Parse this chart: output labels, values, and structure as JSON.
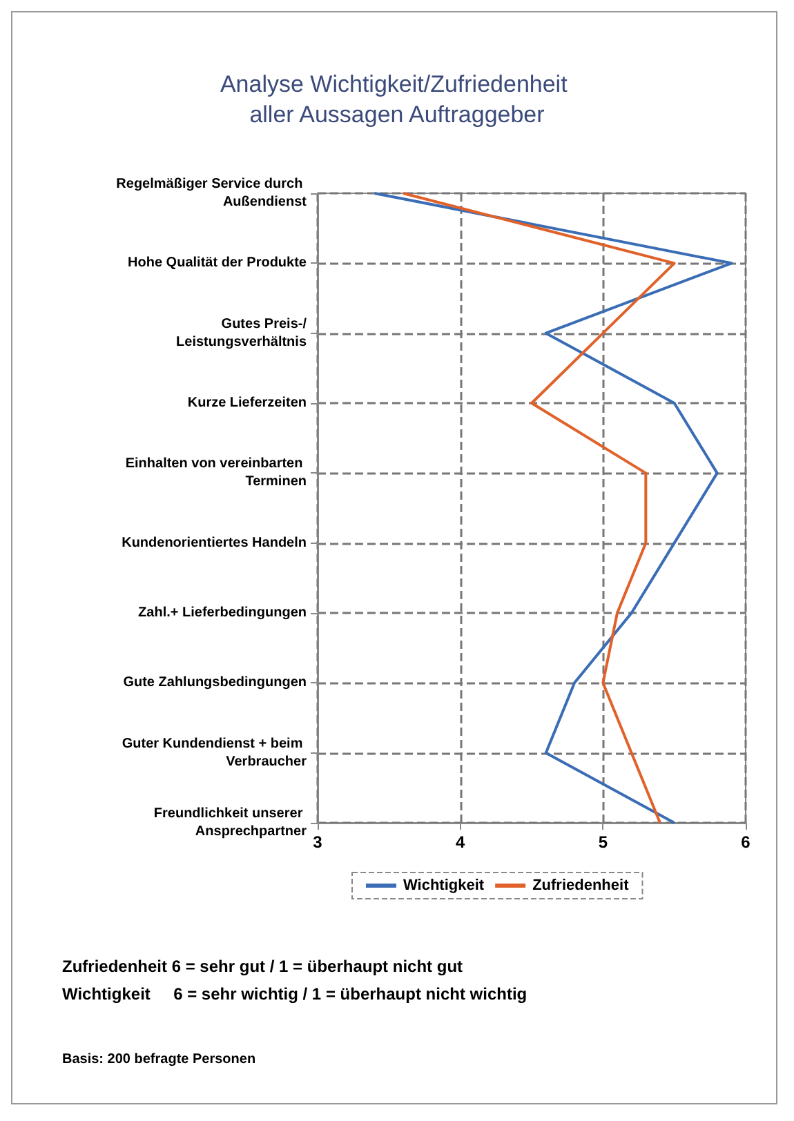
{
  "chart_data": {
    "type": "line",
    "title": "Analyse Wichtigkeit/Zufriedenheit aller Aussagen Auftraggeber",
    "orientation": "horizontal",
    "categories": [
      "Regelmäßiger Service durch Außendienst",
      "Hohe Qualität der Produkte",
      "Gutes Preis-/Leistungsverhältnis",
      "Kurze Lieferzeiten",
      "Einhalten von vereinbarten Terminen",
      "Kundenorientiertes Handeln",
      "Zahl.+ Lieferbedingungen",
      "Gute Zahlungsbedingungen",
      "Guter Kundendienst + beim Verbraucher",
      "Freundlichkeit unserer Ansprechpartner"
    ],
    "series": [
      {
        "name": "Wichtigkeit",
        "color": "#3a6db5",
        "values": [
          3.4,
          5.9,
          4.6,
          5.5,
          5.8,
          5.5,
          5.2,
          4.8,
          4.6,
          5.5
        ]
      },
      {
        "name": "Zufriedenheit",
        "color": "#e0622a",
        "values": [
          3.6,
          5.5,
          5.0,
          4.5,
          5.3,
          5.3,
          5.1,
          5.0,
          5.2,
          5.4
        ]
      }
    ],
    "xlim": [
      3,
      6
    ],
    "xticks": [
      3,
      4,
      5,
      6
    ],
    "grid": true,
    "legend": "bottom",
    "marker": "none",
    "line_style": "solid",
    "annotations": [
      "Zufriedenheit 6 = sehr gut / 1 = überhaupt nicht gut",
      "Wichtigkeit     6 = sehr wichtig / 1 = überhaupt nicht wichtig",
      "Basis: 200 befragte Personen"
    ]
  }
}
